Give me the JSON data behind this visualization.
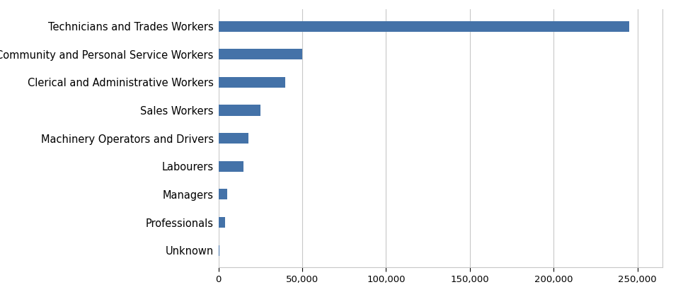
{
  "categories": [
    "Unknown",
    "Professionals",
    "Managers",
    "Labourers",
    "Machinery Operators and Drivers",
    "Sales Workers",
    "Clerical and Administrative Workers",
    "Community and Personal Service Workers",
    "Technicians and Trades Workers"
  ],
  "values": [
    300,
    4000,
    5000,
    15000,
    18000,
    25000,
    40000,
    50000,
    245000
  ],
  "bar_color": "#4472a8",
  "xlim": [
    0,
    265000
  ],
  "xticks": [
    0,
    50000,
    100000,
    150000,
    200000,
    250000
  ],
  "xticklabels": [
    "0",
    "50,000",
    "100,000",
    "150,000",
    "200,000",
    "250,000"
  ],
  "bar_height": 0.38,
  "background_color": "#ffffff",
  "grid_color": "#c8c8c8",
  "label_fontsize": 10.5,
  "tick_fontsize": 9.5
}
